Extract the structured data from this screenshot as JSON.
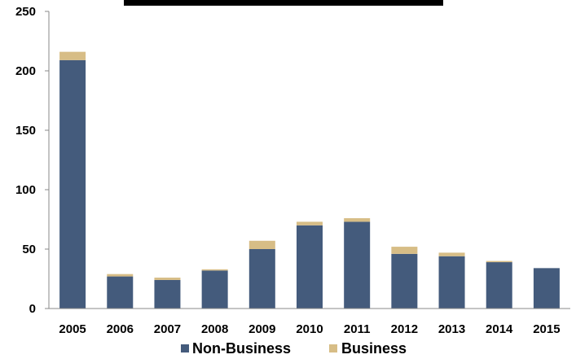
{
  "chart_data": {
    "type": "bar",
    "stacked": true,
    "title": "",
    "xlabel": "",
    "ylabel": "",
    "ylim": [
      0,
      250
    ],
    "yticks": [
      0,
      50,
      100,
      150,
      200,
      250
    ],
    "grid": false,
    "legend_position": "bottom",
    "categories": [
      "2005",
      "2006",
      "2007",
      "2008",
      "2009",
      "2010",
      "2011",
      "2012",
      "2013",
      "2014",
      "2015"
    ],
    "series": [
      {
        "name": "Non-Business",
        "color": "#445b7c",
        "values": [
          209,
          27,
          24,
          32,
          50,
          70,
          73,
          46,
          44,
          39,
          34
        ]
      },
      {
        "name": "Business",
        "color": "#d7bd86",
        "values": [
          7,
          2,
          2,
          1,
          7,
          3,
          3,
          6,
          3,
          1,
          0
        ]
      }
    ]
  }
}
